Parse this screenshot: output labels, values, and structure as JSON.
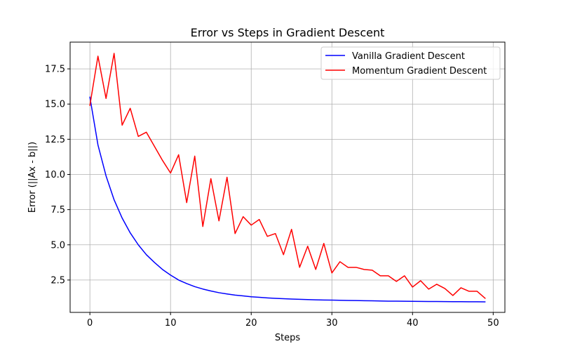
{
  "chart_data": {
    "type": "line",
    "title": "Error vs Steps in Gradient Descent",
    "xlabel": "Steps",
    "ylabel": "Error (||Ax - b||)",
    "xlim": [
      -2.45,
      51.45
    ],
    "ylim": [
      0.2,
      19.4
    ],
    "xticks": [
      0,
      10,
      20,
      30,
      40,
      50
    ],
    "yticks": [
      2.5,
      5.0,
      7.5,
      10.0,
      12.5,
      15.0,
      17.5
    ],
    "xtick_labels": [
      "0",
      "10",
      "20",
      "30",
      "40",
      "50"
    ],
    "ytick_labels": [
      "2.5",
      "5.0",
      "7.5",
      "10.0",
      "12.5",
      "15.0",
      "17.5"
    ],
    "grid": true,
    "legend_position": "top-right",
    "x": [
      0,
      1,
      2,
      3,
      4,
      5,
      6,
      7,
      8,
      9,
      10,
      11,
      12,
      13,
      14,
      15,
      16,
      17,
      18,
      19,
      20,
      21,
      22,
      23,
      24,
      25,
      26,
      27,
      28,
      29,
      30,
      31,
      32,
      33,
      34,
      35,
      36,
      37,
      38,
      39,
      40,
      41,
      42,
      43,
      44,
      45,
      46,
      47,
      48,
      49
    ],
    "series": [
      {
        "name": "Vanilla Gradient Descent",
        "color": "#0000ff",
        "values": [
          15.5,
          12.1,
          9.9,
          8.2,
          6.9,
          5.85,
          5.0,
          4.3,
          3.75,
          3.25,
          2.85,
          2.5,
          2.25,
          2.03,
          1.86,
          1.72,
          1.6,
          1.51,
          1.43,
          1.37,
          1.31,
          1.27,
          1.23,
          1.2,
          1.17,
          1.15,
          1.13,
          1.11,
          1.09,
          1.08,
          1.07,
          1.06,
          1.05,
          1.04,
          1.03,
          1.02,
          1.01,
          1.0,
          0.995,
          0.99,
          0.985,
          0.98,
          0.975,
          0.97,
          0.965,
          0.96,
          0.958,
          0.955,
          0.952,
          0.95
        ]
      },
      {
        "name": "Momentum Gradient Descent",
        "color": "#ff0000",
        "values": [
          14.9,
          18.4,
          15.4,
          18.6,
          13.5,
          14.7,
          12.7,
          13.0,
          12.0,
          11.0,
          10.1,
          11.4,
          8.0,
          11.3,
          6.3,
          9.7,
          6.7,
          9.8,
          5.8,
          7.0,
          6.4,
          6.8,
          5.6,
          5.8,
          4.3,
          6.1,
          3.4,
          4.9,
          3.25,
          5.1,
          3.0,
          3.8,
          3.4,
          3.4,
          3.25,
          3.2,
          2.8,
          2.8,
          2.4,
          2.8,
          2.0,
          2.45,
          1.85,
          2.2,
          1.9,
          1.4,
          1.95,
          1.7,
          1.7,
          1.2
        ]
      }
    ]
  }
}
